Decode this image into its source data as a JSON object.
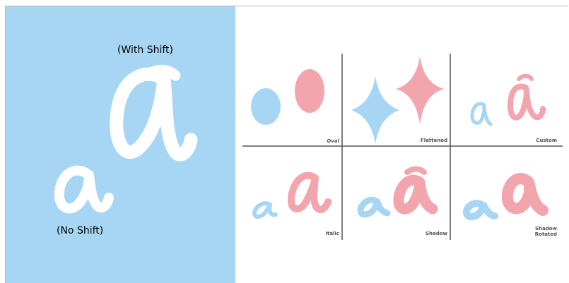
{
  "colors": {
    "left_panel_bg": "#a6d6f3",
    "blue_glyph": "#a6d6f3",
    "pink_glyph": "#f2a5ad",
    "white_glyph": "#ffffff",
    "grid_line": "#555555"
  },
  "left_panel": {
    "with_shift_label": "(With Shift)",
    "no_shift_label": "(No Shift)",
    "glyph_char": "a"
  },
  "grid": {
    "cells": [
      {
        "label": "Oval",
        "icon": "oval-pair"
      },
      {
        "label": "Flattened",
        "icon": "diamond-pair"
      },
      {
        "label": "Custom",
        "icon": "custom-a-pair"
      },
      {
        "label": "Italic",
        "icon": "italic-a-pair"
      },
      {
        "label": "Shadow",
        "icon": "shadow-a-pair"
      },
      {
        "label": "Shadow Rotated",
        "icon": "rotated-a-pair"
      }
    ]
  }
}
